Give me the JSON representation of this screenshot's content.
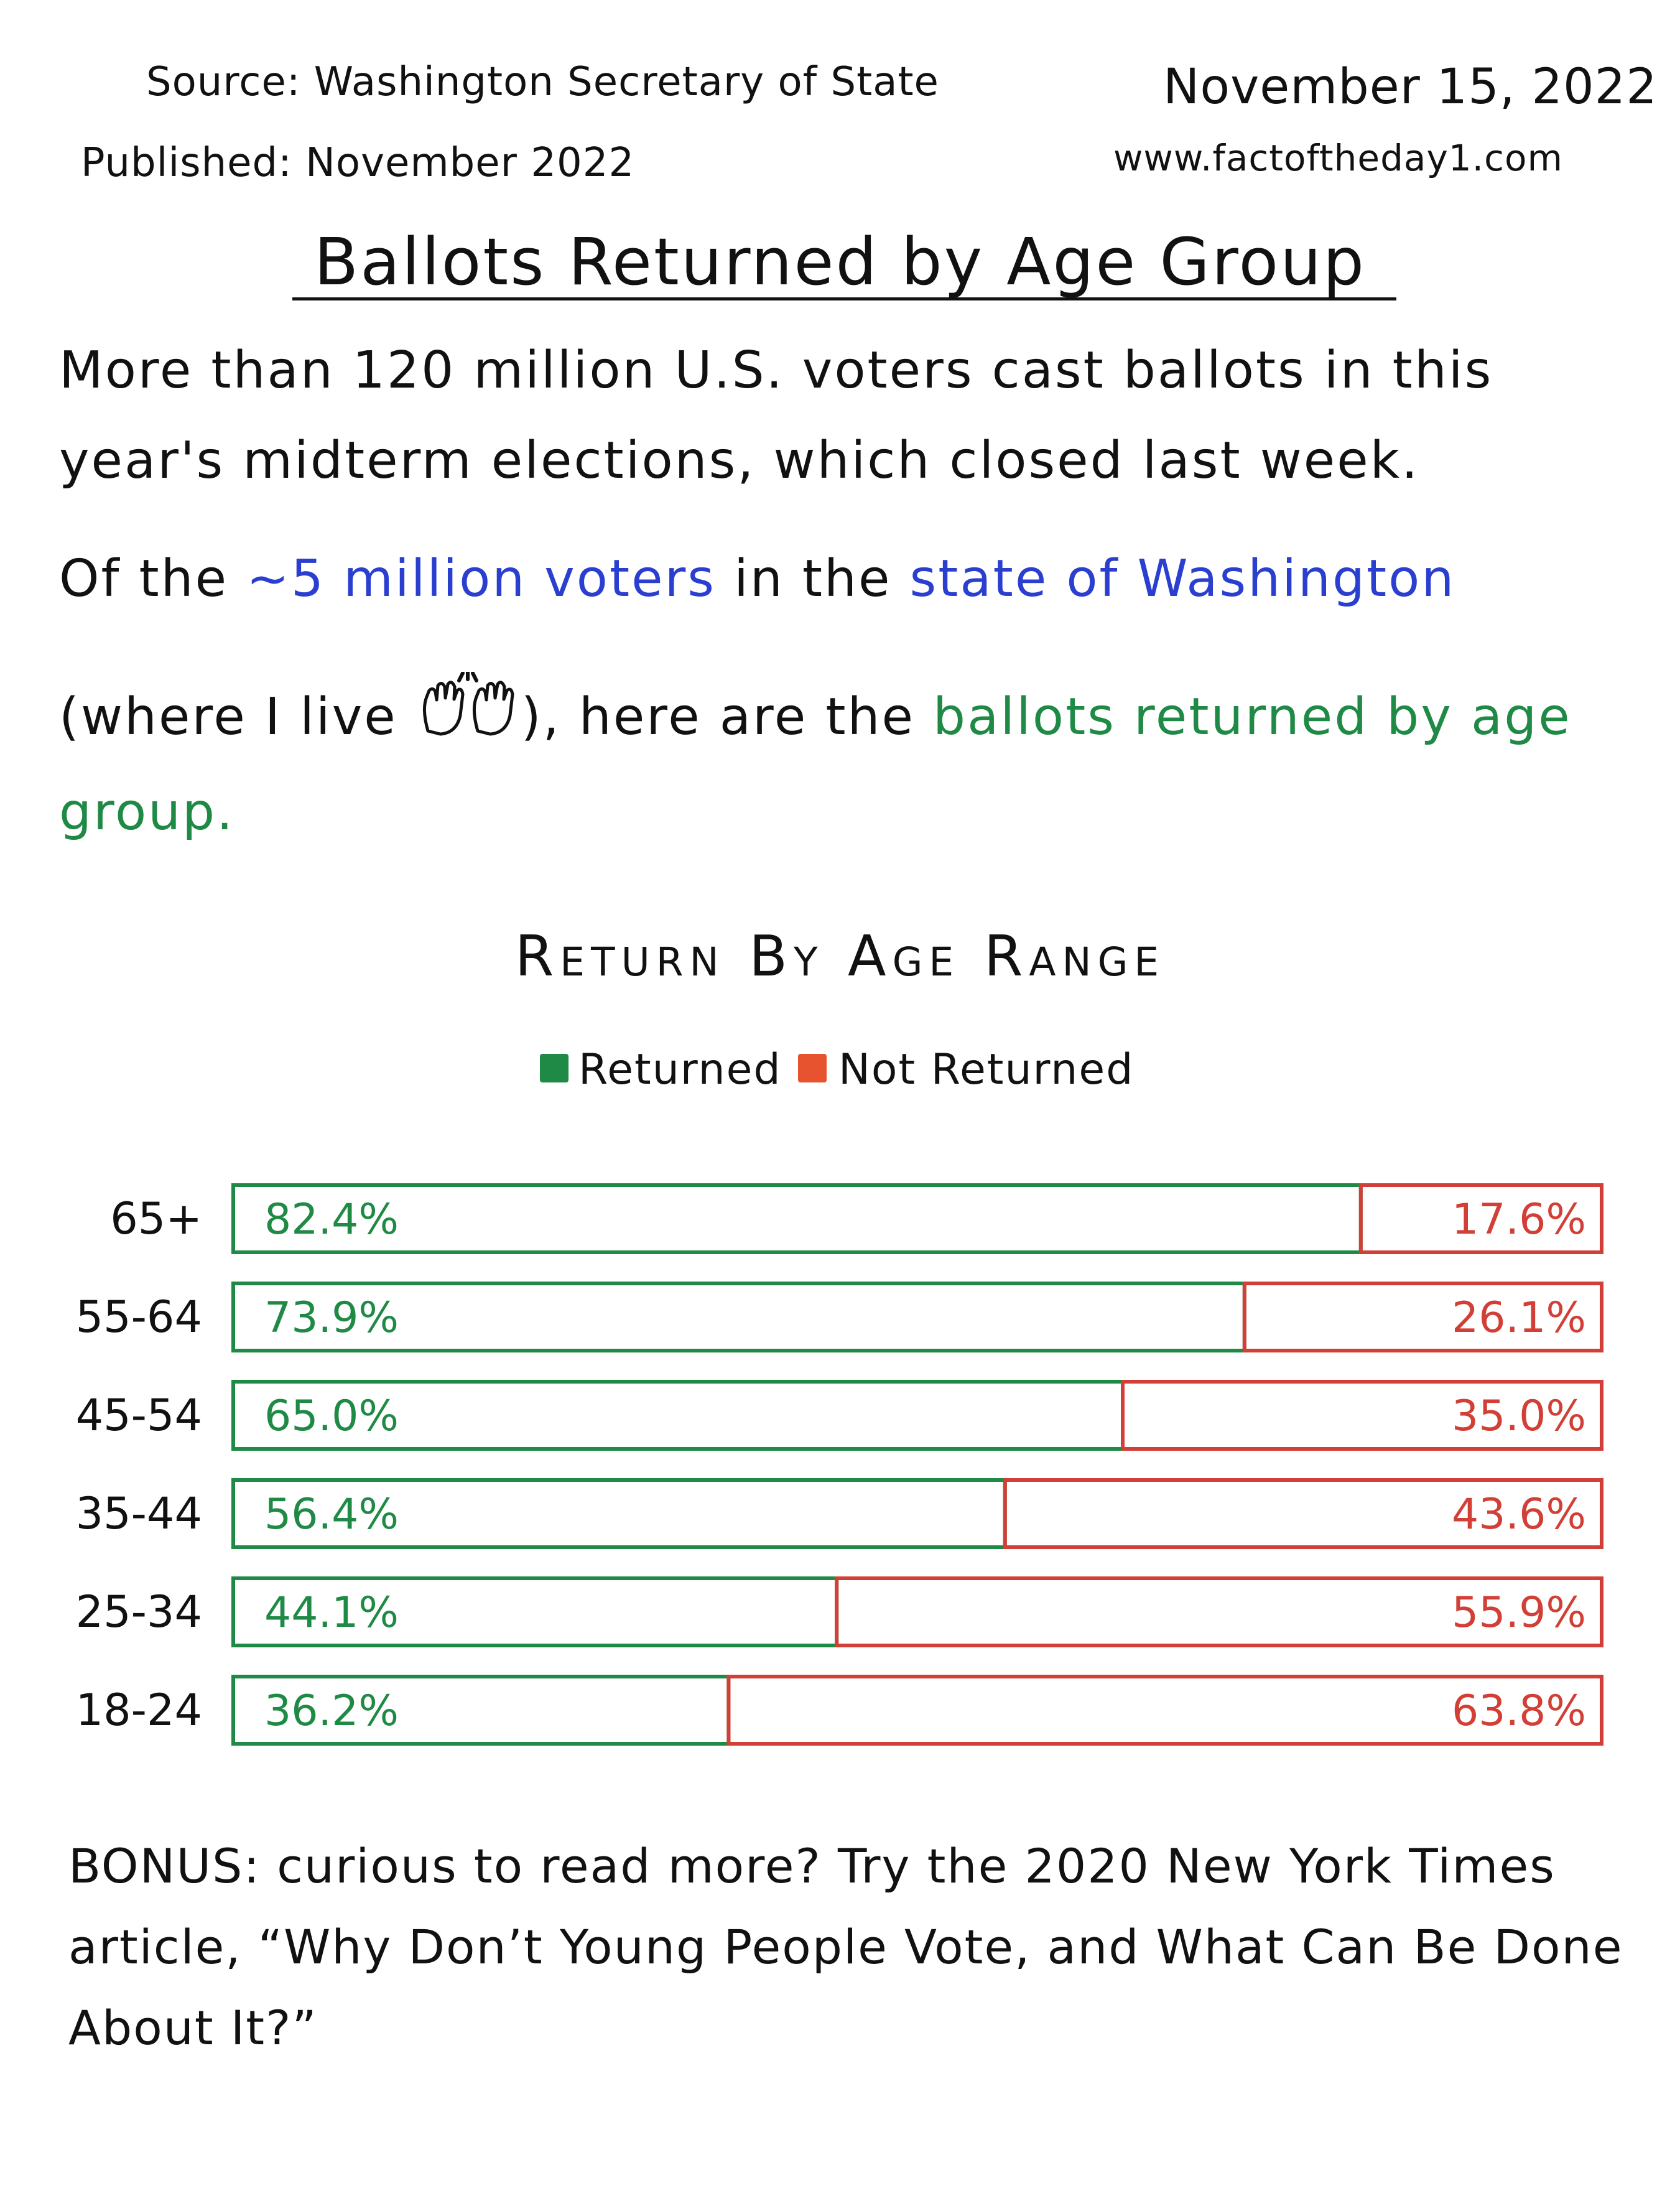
{
  "header": {
    "source": "Source: Washington Secretary of State",
    "published": "Published: November 2022",
    "date": "November 15, 2022",
    "website": "www.factoftheday1.com"
  },
  "title": "Ballots Returned by Age Group",
  "intro": {
    "line1": "More than 120 million U.S. voters cast ballots in this",
    "line2": "year's midterm elections, which closed last week.",
    "line3_a": "Of the ",
    "line3_b": "~5 million voters",
    "line3_c": " in the ",
    "line3_d": "state of Washington",
    "line4_a": "(where I live ",
    "line4_b": "), here are the ",
    "line4_c": "ballots returned by age",
    "line5": "group."
  },
  "colors": {
    "returned": "#1f8a45",
    "not_returned": "#d23f36",
    "blue_text": "#2a3fd0"
  },
  "icon": "raised-hands-icon",
  "chart_data": {
    "type": "bar",
    "stacked": true,
    "orientation": "horizontal",
    "title": "Return By Age Range",
    "legend": {
      "position": "top-center",
      "items": [
        "Returned",
        "Not Returned"
      ]
    },
    "categories": [
      "65+",
      "55-64",
      "45-54",
      "35-44",
      "25-34",
      "18-24"
    ],
    "series": [
      {
        "name": "Returned",
        "values": [
          82.4,
          73.9,
          65.0,
          56.4,
          44.1,
          36.2
        ],
        "labels": [
          "82.4%",
          "73.9%",
          "65.0%",
          "56.4%",
          "44.1%",
          "36.2%"
        ]
      },
      {
        "name": "Not Returned",
        "values": [
          17.6,
          26.1,
          35.0,
          43.6,
          55.9,
          63.8
        ],
        "labels": [
          "17.6%",
          "26.1%",
          "35.0%",
          "43.6%",
          "55.9%",
          "63.8%"
        ]
      }
    ],
    "xlim": [
      0,
      100
    ],
    "grid": false
  },
  "bonus": {
    "line1": "BONUS: curious to read more? Try the 2020 New York Times",
    "line2": "article, “Why Don’t Young People Vote, and What Can Be Done",
    "line3": "About It?”"
  }
}
